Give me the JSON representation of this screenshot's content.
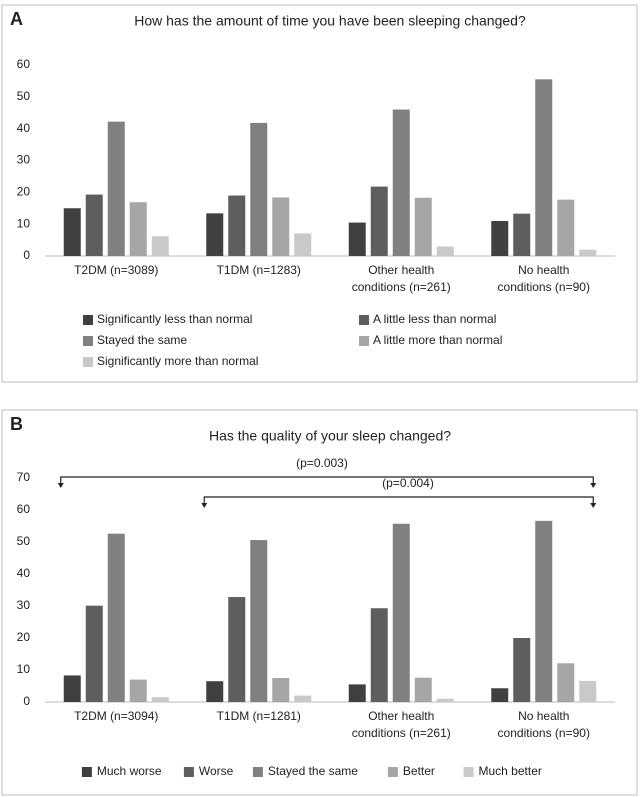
{
  "chart_data": [
    {
      "type": "bar",
      "panel_label": "A",
      "title": "How has the amount of time you have been sleeping changed?",
      "categories": [
        "T2DM (n=3089)",
        "T1DM (n=1283)",
        "Other health conditions (n=261)",
        "No health conditions (n=90)"
      ],
      "series": [
        {
          "name": "Significantly less than normal",
          "color": "#404040",
          "values": [
            15,
            13.4,
            10.5,
            11
          ]
        },
        {
          "name": "A little less than normal",
          "color": "#5e5e5e",
          "values": [
            19.3,
            19,
            21.8,
            13.3
          ]
        },
        {
          "name": "Stayed the same",
          "color": "#808080",
          "values": [
            42.2,
            41.8,
            46,
            55.5
          ]
        },
        {
          "name": "A little more than normal",
          "color": "#a6a6a6",
          "values": [
            16.9,
            18.4,
            18.3,
            17.7
          ]
        },
        {
          "name": "Significantly more than normal",
          "color": "#c9c9c9",
          "values": [
            6.2,
            7.1,
            3,
            2
          ]
        }
      ],
      "ylim": [
        0,
        60
      ],
      "yticks": [
        0,
        10,
        20,
        30,
        40,
        50,
        60
      ],
      "grid": false
    },
    {
      "type": "bar",
      "panel_label": "B",
      "title": "Has the quality of your sleep changed?",
      "categories": [
        "T2DM (n=3094)",
        "T1DM (n=1281)",
        "Other health conditions (n=261)",
        "No health conditions (n=90)"
      ],
      "series": [
        {
          "name": "Much worse",
          "color": "#404040",
          "values": [
            8.3,
            6.5,
            5.5,
            4.3
          ]
        },
        {
          "name": "Worse",
          "color": "#5e5e5e",
          "values": [
            30.1,
            32.8,
            29.3,
            20
          ]
        },
        {
          "name": "Stayed the same",
          "color": "#808080",
          "values": [
            52.6,
            50.6,
            55.7,
            56.6
          ]
        },
        {
          "name": "Better",
          "color": "#a6a6a6",
          "values": [
            7,
            7.5,
            7.6,
            12.1
          ]
        },
        {
          "name": "Much better",
          "color": "#c9c9c9",
          "values": [
            1.5,
            2,
            1,
            6.6
          ]
        }
      ],
      "annotations": [
        "(p=0.003)",
        "(p=0.004)"
      ],
      "ylim": [
        0,
        70
      ],
      "yticks": [
        0,
        10,
        20,
        30,
        40,
        50,
        60,
        70
      ],
      "grid": false
    }
  ]
}
